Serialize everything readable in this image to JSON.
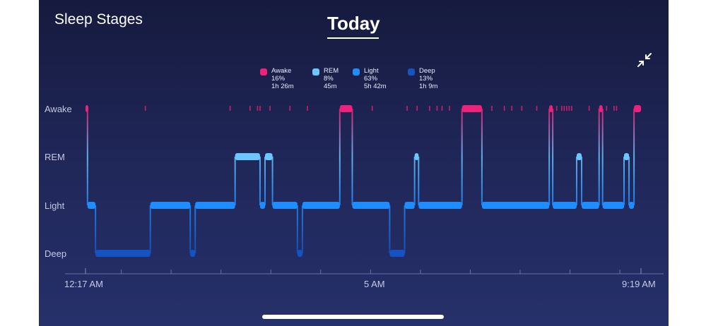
{
  "header": {
    "title": "Sleep Stages",
    "tab_label": "Today"
  },
  "icons": {
    "collapse": "collapse-arrows-icon"
  },
  "legend": [
    {
      "name": "Awake",
      "percent": "16%",
      "duration": "1h 26m",
      "color": "#f0217a"
    },
    {
      "name": "REM",
      "percent": "8%",
      "duration": "45m",
      "color": "#6cc6ff"
    },
    {
      "name": "Light",
      "percent": "63%",
      "duration": "5h 42m",
      "color": "#1f8cff"
    },
    {
      "name": "Deep",
      "percent": "13%",
      "duration": "1h 9m",
      "color": "#1552c2"
    }
  ],
  "chart_data": {
    "type": "line",
    "title": "Sleep Stages",
    "stages": [
      "Awake",
      "REM",
      "Light",
      "Deep"
    ],
    "x_start": "12:17 AM",
    "x_end": "9:19 AM",
    "x_ticks": [
      "12:17 AM",
      "5 AM",
      "9:19 AM"
    ],
    "segments": [
      {
        "start": 0.0,
        "end": 0.04,
        "stage": "Awake"
      },
      {
        "start": 0.04,
        "end": 0.2,
        "stage": "Light"
      },
      {
        "start": 0.2,
        "end": 1.3,
        "stage": "Deep"
      },
      {
        "start": 1.3,
        "end": 2.1,
        "stage": "Light"
      },
      {
        "start": 2.1,
        "end": 2.2,
        "stage": "Deep"
      },
      {
        "start": 2.2,
        "end": 3.0,
        "stage": "Light"
      },
      {
        "start": 3.0,
        "end": 3.5,
        "stage": "REM"
      },
      {
        "start": 3.5,
        "end": 3.6,
        "stage": "Light"
      },
      {
        "start": 3.6,
        "end": 3.75,
        "stage": "REM"
      },
      {
        "start": 3.75,
        "end": 4.25,
        "stage": "Light"
      },
      {
        "start": 4.25,
        "end": 4.35,
        "stage": "Deep"
      },
      {
        "start": 4.35,
        "end": 5.1,
        "stage": "Light"
      },
      {
        "start": 5.1,
        "end": 5.35,
        "stage": "Awake"
      },
      {
        "start": 5.35,
        "end": 6.1,
        "stage": "Light"
      },
      {
        "start": 6.1,
        "end": 6.4,
        "stage": "Deep"
      },
      {
        "start": 6.4,
        "end": 6.6,
        "stage": "Light"
      },
      {
        "start": 6.6,
        "end": 6.68,
        "stage": "REM"
      },
      {
        "start": 6.68,
        "end": 7.55,
        "stage": "Light"
      },
      {
        "start": 7.55,
        "end": 7.95,
        "stage": "Awake"
      },
      {
        "start": 7.95,
        "end": 9.3,
        "stage": "Light"
      },
      {
        "start": 9.3,
        "end": 9.37,
        "stage": "Awake"
      },
      {
        "start": 9.37,
        "end": 9.85,
        "stage": "Light"
      },
      {
        "start": 9.85,
        "end": 9.95,
        "stage": "REM"
      },
      {
        "start": 9.95,
        "end": 10.3,
        "stage": "Light"
      },
      {
        "start": 10.3,
        "end": 10.37,
        "stage": "Awake"
      },
      {
        "start": 10.37,
        "end": 10.8,
        "stage": "Light"
      },
      {
        "start": 10.8,
        "end": 10.9,
        "stage": "REM"
      },
      {
        "start": 10.9,
        "end": 11.0,
        "stage": "Light"
      },
      {
        "start": 11.0,
        "end": 11.14,
        "stage": "Awake"
      }
    ],
    "brief_awakenings": [
      1.2,
      2.9,
      3.3,
      3.45,
      3.5,
      3.7,
      4.1,
      4.45,
      5.75,
      6.45,
      6.65,
      6.9,
      7.05,
      7.15,
      7.3,
      8.15,
      8.4,
      8.55,
      8.75,
      9.05,
      9.45,
      9.55,
      9.6,
      9.65,
      9.7,
      9.75,
      10.1,
      10.45,
      10.6,
      10.65
    ]
  }
}
